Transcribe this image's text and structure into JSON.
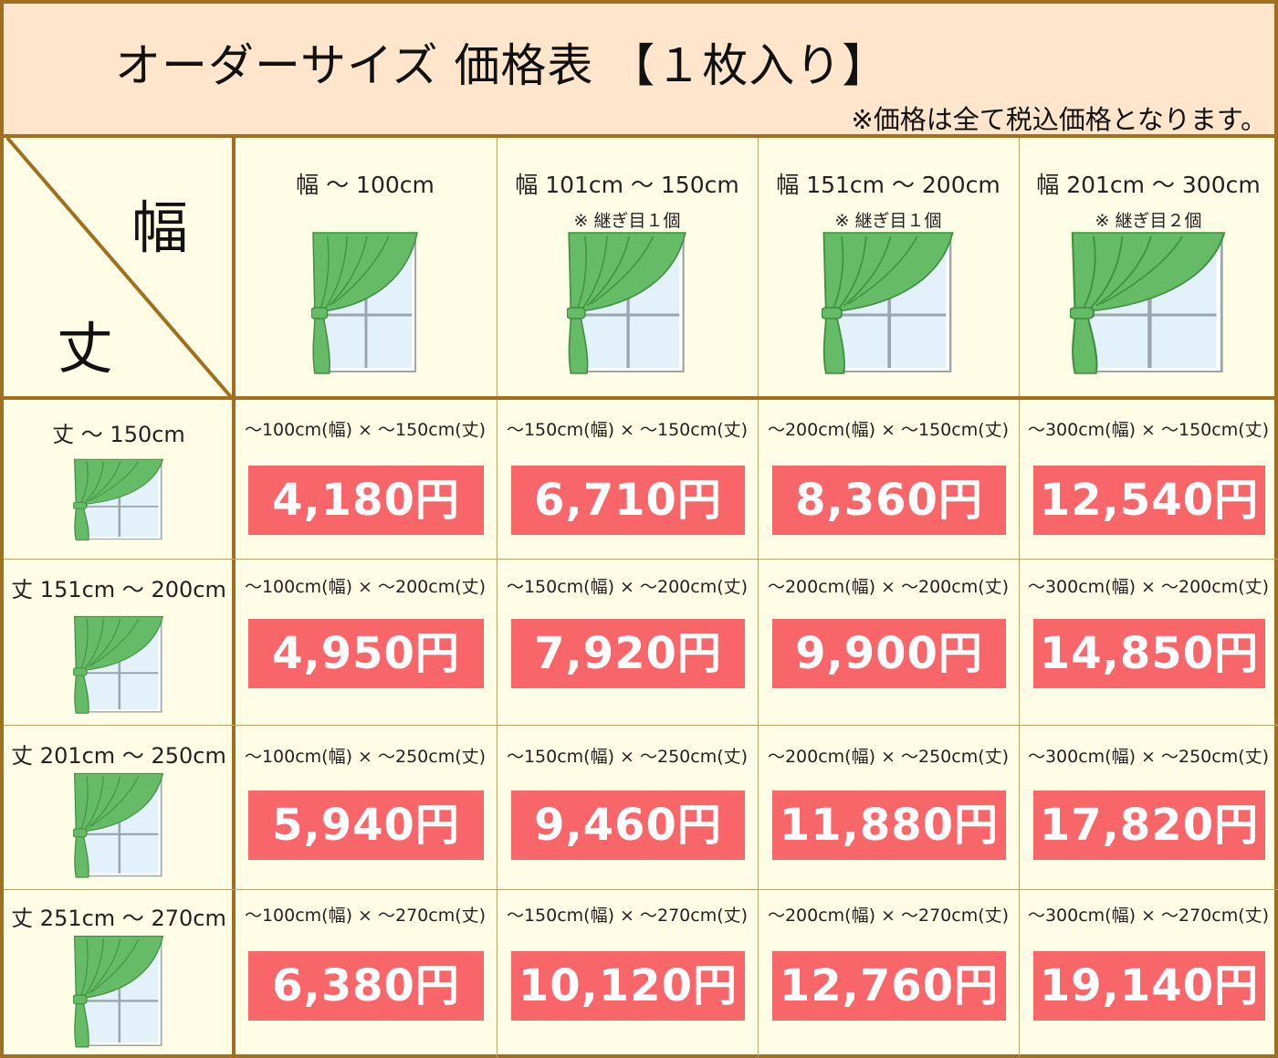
{
  "header": {
    "title": "オーダーサイズ 価格表 【１枚入り】",
    "note": "※価格は全て税込価格となります。"
  },
  "corner": {
    "width_label": "幅",
    "height_label": "丈"
  },
  "columns": [
    {
      "label": "幅 ～ 100cm",
      "seam": ""
    },
    {
      "label": "幅 101cm ～ 150cm",
      "seam": "※ 継ぎ目１個"
    },
    {
      "label": "幅 151cm ～ 200cm",
      "seam": "※ 継ぎ目１個"
    },
    {
      "label": "幅 201cm ～ 300cm",
      "seam": "※ 継ぎ目２個"
    }
  ],
  "rows": [
    {
      "label": "丈 ～ 150cm",
      "cells": [
        {
          "dims": "～100cm(幅) × ～150cm(丈)",
          "price": "4,180円"
        },
        {
          "dims": "～150cm(幅) × ～150cm(丈)",
          "price": "6,710円"
        },
        {
          "dims": "～200cm(幅) × ～150cm(丈)",
          "price": "8,360円"
        },
        {
          "dims": "～300cm(幅) × ～150cm(丈)",
          "price": "12,540円"
        }
      ]
    },
    {
      "label": "丈 151cm ～ 200cm",
      "cells": [
        {
          "dims": "～100cm(幅) × ～200cm(丈)",
          "price": "4,950円"
        },
        {
          "dims": "～150cm(幅) × ～200cm(丈)",
          "price": "7,920円"
        },
        {
          "dims": "～200cm(幅) × ～200cm(丈)",
          "price": "9,900円"
        },
        {
          "dims": "～300cm(幅) × ～200cm(丈)",
          "price": "14,850円"
        }
      ]
    },
    {
      "label": "丈 201cm ～ 250cm",
      "cells": [
        {
          "dims": "～100cm(幅) × ～250cm(丈)",
          "price": "5,940円"
        },
        {
          "dims": "～150cm(幅) × ～250cm(丈)",
          "price": "9,460円"
        },
        {
          "dims": "～200cm(幅) × ～250cm(丈)",
          "price": "11,880円"
        },
        {
          "dims": "～300cm(幅) × ～250cm(丈)",
          "price": "17,820円"
        }
      ]
    },
    {
      "label": "丈 251cm ～ 270cm",
      "cells": [
        {
          "dims": "～100cm(幅) × ～270cm(丈)",
          "price": "6,380円"
        },
        {
          "dims": "～150cm(幅) × ～270cm(丈)",
          "price": "10,120円"
        },
        {
          "dims": "～200cm(幅) × ～270cm(丈)",
          "price": "12,760円"
        },
        {
          "dims": "～300cm(幅) × ～270cm(丈)",
          "price": "19,140円"
        }
      ]
    }
  ],
  "colors": {
    "border": "#a0701e",
    "header_bg": "#fee5cc",
    "table_bg": "#fffde6",
    "price_bg": "#f9666a",
    "curtain": "#66bb66",
    "window_glass": "#e3f1fa"
  }
}
